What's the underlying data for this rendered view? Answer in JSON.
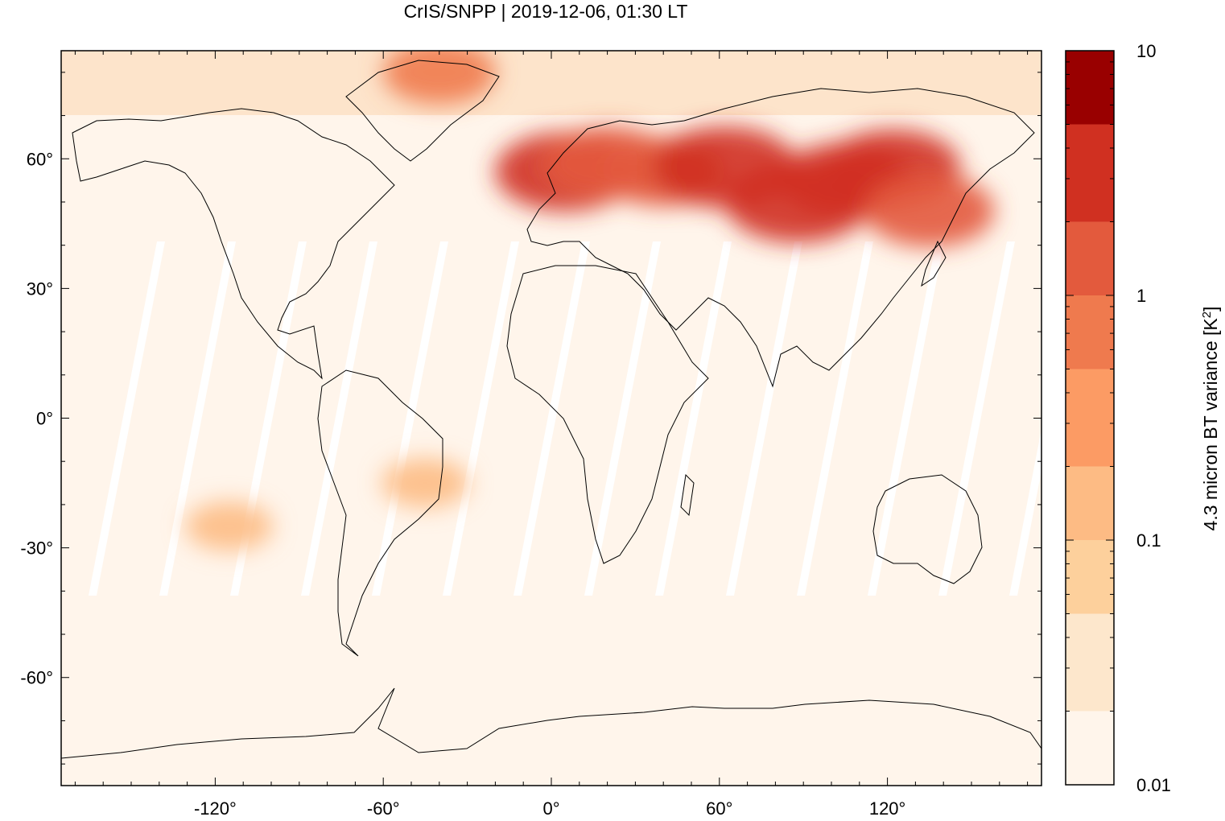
{
  "chart_data": {
    "type": "heatmap",
    "title": "CrIS/SNPP | 2019-12-06, 01:30 LT",
    "x_ticks": [
      {
        "value": -120,
        "label": "-120°"
      },
      {
        "value": -60,
        "label": "-60°"
      },
      {
        "value": 0,
        "label": "0°"
      },
      {
        "value": 60,
        "label": "60°"
      },
      {
        "value": 120,
        "label": "120°"
      }
    ],
    "y_ticks": [
      {
        "value": 60,
        "label": "60°"
      },
      {
        "value": 30,
        "label": "30°"
      },
      {
        "value": 0,
        "label": "0°"
      },
      {
        "value": -30,
        "label": "-30°"
      },
      {
        "value": -60,
        "label": "-60°"
      }
    ],
    "xlim": [
      -175,
      175
    ],
    "ylim": [
      -85,
      85
    ],
    "colorbar": {
      "label": "4.3 micron BT variance [K",
      "label_superscript": "2",
      "label_suffix": "]",
      "scale": "log",
      "range": [
        0.01,
        10
      ],
      "tick_labels": [
        {
          "value": 10,
          "label": "10"
        },
        {
          "value": 1,
          "label": "1"
        },
        {
          "value": 0.1,
          "label": "0.1"
        },
        {
          "value": 0.01,
          "label": "0.01"
        }
      ],
      "levels": [
        {
          "color": "#fff5eb",
          "from": 0.01,
          "to": 0.02
        },
        {
          "color": "#fde7cc",
          "from": 0.02,
          "to": 0.05
        },
        {
          "color": "#fdd09c",
          "from": 0.05,
          "to": 0.1
        },
        {
          "color": "#fdbb84",
          "from": 0.1,
          "to": 0.2
        },
        {
          "color": "#fc9b64",
          "from": 0.2,
          "to": 0.5
        },
        {
          "color": "#ef7a4e",
          "from": 0.5,
          "to": 1
        },
        {
          "color": "#e35a3d",
          "from": 1,
          "to": 2
        },
        {
          "color": "#d03021",
          "from": 2,
          "to": 5
        },
        {
          "color": "#990000",
          "from": 5,
          "to": 10
        }
      ]
    },
    "hotspots": [
      {
        "lon": 5,
        "lat": 57,
        "value": 3
      },
      {
        "lon": 20,
        "lat": 59,
        "value": 1.5
      },
      {
        "lon": 40,
        "lat": 57,
        "value": 1
      },
      {
        "lon": 62,
        "lat": 58,
        "value": 4
      },
      {
        "lon": 88,
        "lat": 50,
        "value": 4
      },
      {
        "lon": 105,
        "lat": 55,
        "value": 2
      },
      {
        "lon": 122,
        "lat": 58,
        "value": 2
      },
      {
        "lon": 135,
        "lat": 48,
        "value": 1.5
      },
      {
        "lon": -40,
        "lat": 80,
        "value": 0.5
      },
      {
        "lon": -45,
        "lat": -15,
        "value": 0.1
      },
      {
        "lon": -115,
        "lat": -25,
        "value": 0.1
      }
    ]
  }
}
